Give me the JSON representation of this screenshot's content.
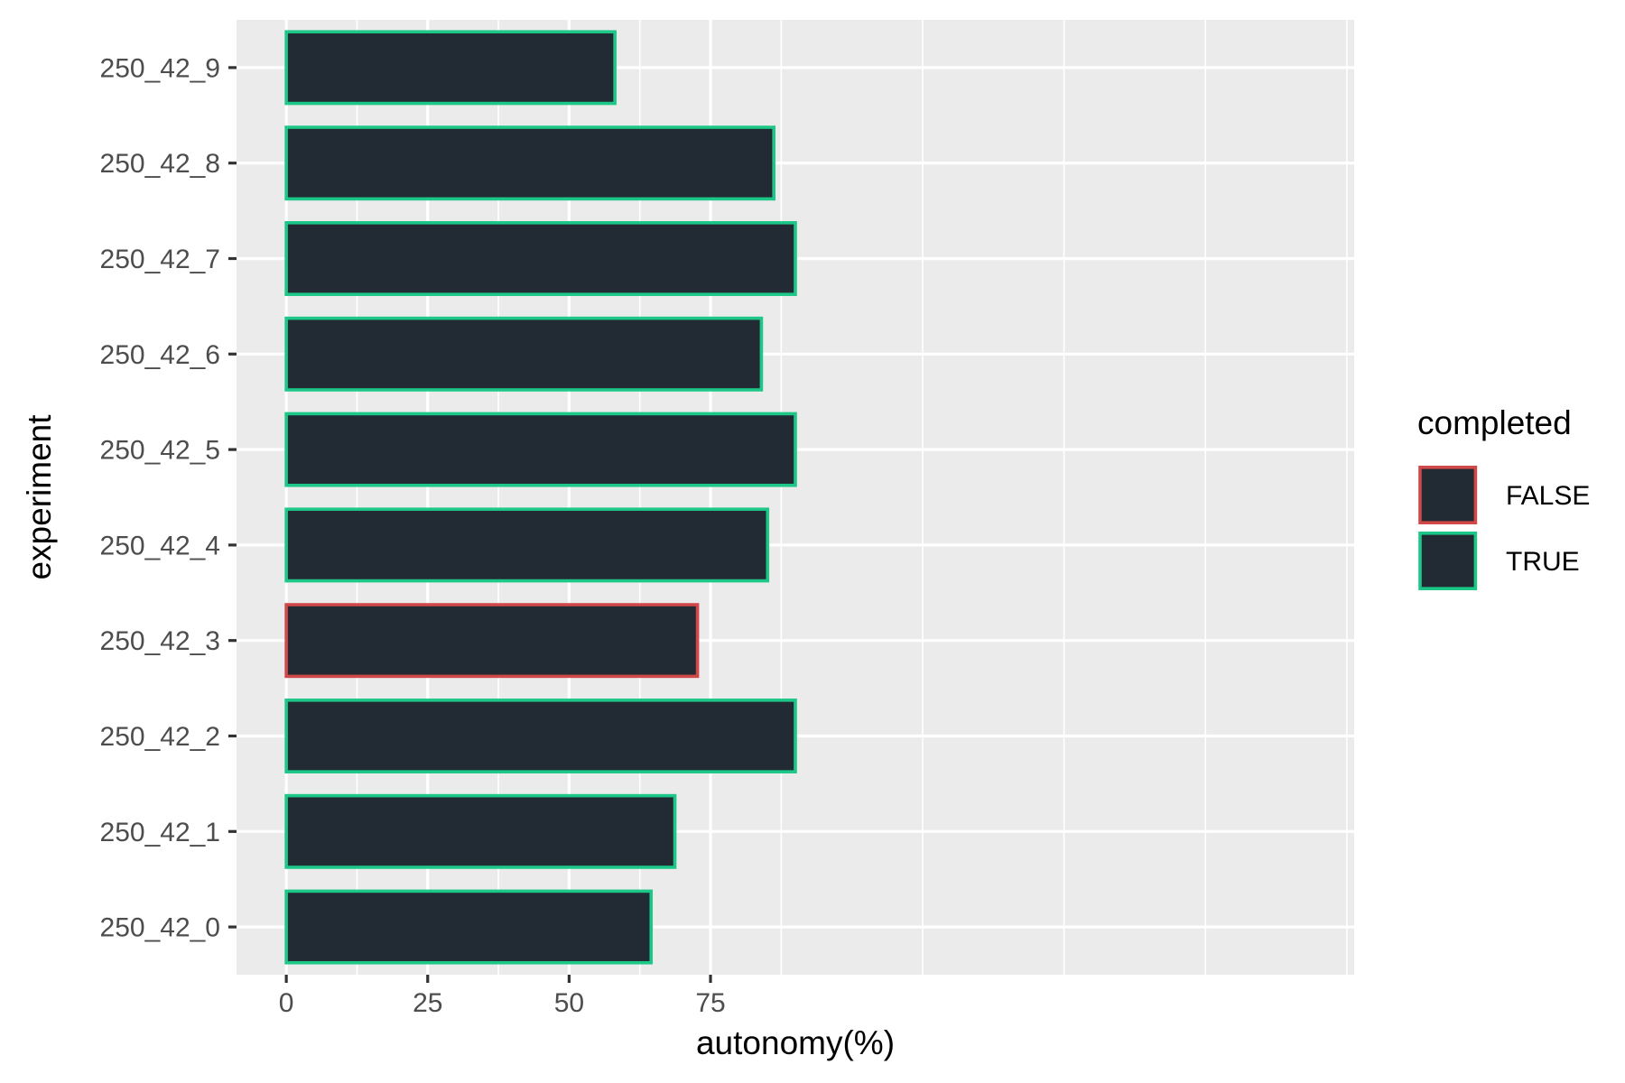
{
  "chart_data": {
    "type": "bar",
    "orientation": "horizontal",
    "xlabel": "autonomy(%)",
    "ylabel": "experiment",
    "xlim": [
      -8.8,
      188.8
    ],
    "x_ticks": [
      0,
      25,
      50,
      75
    ],
    "grid": true,
    "categories": [
      "250_42_0",
      "250_42_1",
      "250_42_2",
      "250_42_3",
      "250_42_4",
      "250_42_5",
      "250_42_6",
      "250_42_7",
      "250_42_8",
      "250_42_9"
    ],
    "values": [
      64.5,
      68.7,
      90.0,
      72.7,
      85.1,
      90.0,
      84.0,
      90.0,
      86.2,
      58.1
    ],
    "completed": [
      "TRUE",
      "TRUE",
      "TRUE",
      "FALSE",
      "TRUE",
      "TRUE",
      "TRUE",
      "TRUE",
      "TRUE",
      "TRUE"
    ],
    "bar_fill": "#222b33",
    "legend": {
      "title": "completed",
      "position": "right",
      "entries": [
        {
          "label": "FALSE",
          "color": "#d04848"
        },
        {
          "label": "TRUE",
          "color": "#1cc787"
        }
      ]
    },
    "panel_background": "#ebebeb",
    "grid_color": "#ffffff"
  }
}
